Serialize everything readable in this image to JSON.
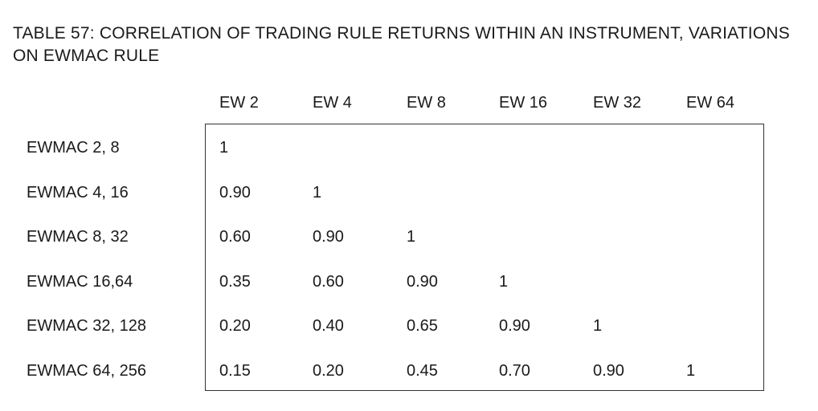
{
  "title": "TABLE 57: CORRELATION OF TRADING RULE RETURNS WITHIN AN INSTRUMENT, VARIATIONS ON EWMAC RULE",
  "columns": [
    "EW 2",
    "EW 4",
    "EW 8",
    "EW 16",
    "EW 32",
    "EW 64"
  ],
  "rows": [
    {
      "label": "EWMAC 2, 8",
      "values": [
        "1"
      ]
    },
    {
      "label": "EWMAC 4, 16",
      "values": [
        "0.90",
        "1"
      ]
    },
    {
      "label": "EWMAC 8, 32",
      "values": [
        "0.60",
        "0.90",
        "1"
      ]
    },
    {
      "label": "EWMAC 16,64",
      "values": [
        "0.35",
        "0.60",
        "0.90",
        "1"
      ]
    },
    {
      "label": "EWMAC 32, 128",
      "values": [
        "0.20",
        "0.40",
        "0.65",
        "0.90",
        "1"
      ]
    },
    {
      "label": "EWMAC 64, 256",
      "values": [
        "0.15",
        "0.20",
        "0.45",
        "0.70",
        "0.90",
        "1"
      ]
    }
  ]
}
